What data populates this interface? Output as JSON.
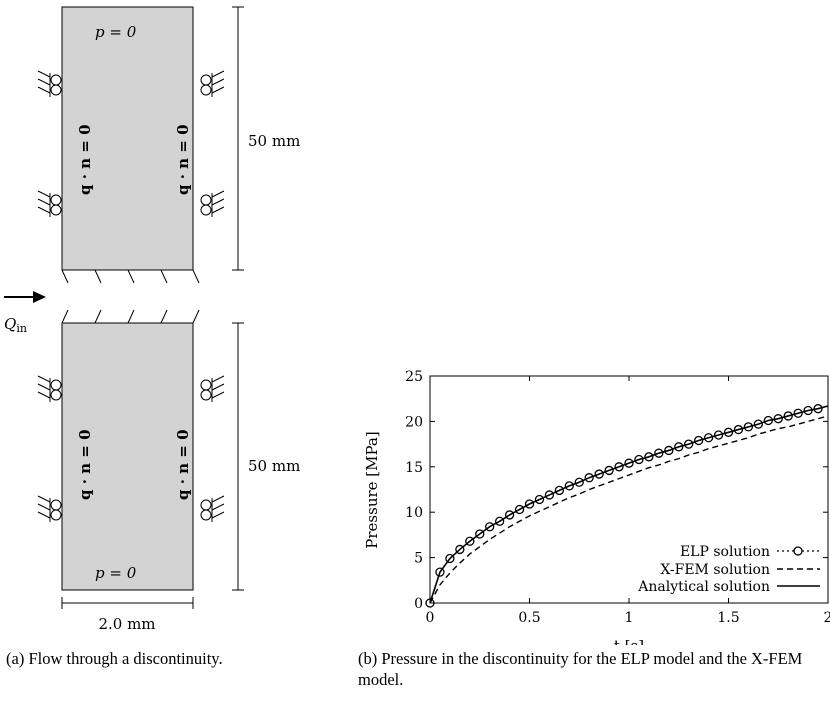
{
  "panel_a": {
    "top_bc_label": "p = 0",
    "bottom_bc_label": "p = 0",
    "flux_bc_label": "q · n = 0",
    "top_height_label": "50 mm",
    "bottom_height_label": "50 mm",
    "width_label": "2.0 mm",
    "inflow_label": "Q",
    "inflow_subscript": "in",
    "caption": "(a) Flow through a discontinuity."
  },
  "panel_b": {
    "caption": "(b) Pressure in the discontinuity for the ELP model and the X-FEM model."
  },
  "chart_data": {
    "type": "line",
    "xlabel": "t [s]",
    "ylabel": "Pressure [MPa]",
    "xlim": [
      0,
      2
    ],
    "ylim": [
      0,
      25
    ],
    "xticks": [
      "0",
      "0.5",
      "1",
      "1.5",
      "2"
    ],
    "yticks": [
      "0",
      "5",
      "10",
      "15",
      "20",
      "25"
    ],
    "legend_position": "bottom-right",
    "x": [
      0,
      0.05,
      0.1,
      0.15,
      0.2,
      0.25,
      0.3,
      0.35,
      0.4,
      0.45,
      0.5,
      0.55,
      0.6,
      0.65,
      0.7,
      0.75,
      0.8,
      0.85,
      0.9,
      0.95,
      1.0,
      1.05,
      1.1,
      1.15,
      1.2,
      1.25,
      1.3,
      1.35,
      1.4,
      1.45,
      1.5,
      1.55,
      1.6,
      1.65,
      1.7,
      1.75,
      1.8,
      1.85,
      1.9,
      1.95,
      2.0
    ],
    "series": [
      {
        "name": "ELP solution",
        "style": "dotted-circles",
        "values": [
          0,
          3.4,
          4.9,
          5.9,
          6.8,
          7.6,
          8.4,
          9.0,
          9.7,
          10.3,
          10.9,
          11.4,
          11.9,
          12.4,
          12.9,
          13.3,
          13.8,
          14.2,
          14.6,
          15.0,
          15.4,
          15.8,
          16.1,
          16.5,
          16.8,
          17.2,
          17.5,
          17.9,
          18.2,
          18.5,
          18.8,
          19.1,
          19.4,
          19.7,
          20.1,
          20.3,
          20.6,
          20.9,
          21.2,
          21.4,
          21.7
        ]
      },
      {
        "name": "X-FEM solution",
        "style": "dashed",
        "values": [
          0,
          2.0,
          3.3,
          4.4,
          5.4,
          6.2,
          7.0,
          7.7,
          8.4,
          9.0,
          9.6,
          10.1,
          10.6,
          11.1,
          11.6,
          12.0,
          12.5,
          12.9,
          13.3,
          13.7,
          14.1,
          14.5,
          14.9,
          15.2,
          15.6,
          15.9,
          16.3,
          16.6,
          17.0,
          17.3,
          17.6,
          17.9,
          18.2,
          18.6,
          18.9,
          19.2,
          19.4,
          19.7,
          20.0,
          20.3,
          20.6
        ]
      },
      {
        "name": "Analytical solution",
        "style": "solid",
        "values": [
          0,
          3.4,
          4.9,
          5.9,
          6.8,
          7.6,
          8.4,
          9.0,
          9.7,
          10.3,
          10.9,
          11.4,
          11.9,
          12.4,
          12.9,
          13.3,
          13.8,
          14.2,
          14.6,
          15.0,
          15.4,
          15.8,
          16.1,
          16.5,
          16.8,
          17.2,
          17.5,
          17.9,
          18.2,
          18.5,
          18.8,
          19.1,
          19.4,
          19.7,
          20.1,
          20.3,
          20.6,
          20.9,
          21.2,
          21.4,
          21.7
        ]
      }
    ]
  }
}
